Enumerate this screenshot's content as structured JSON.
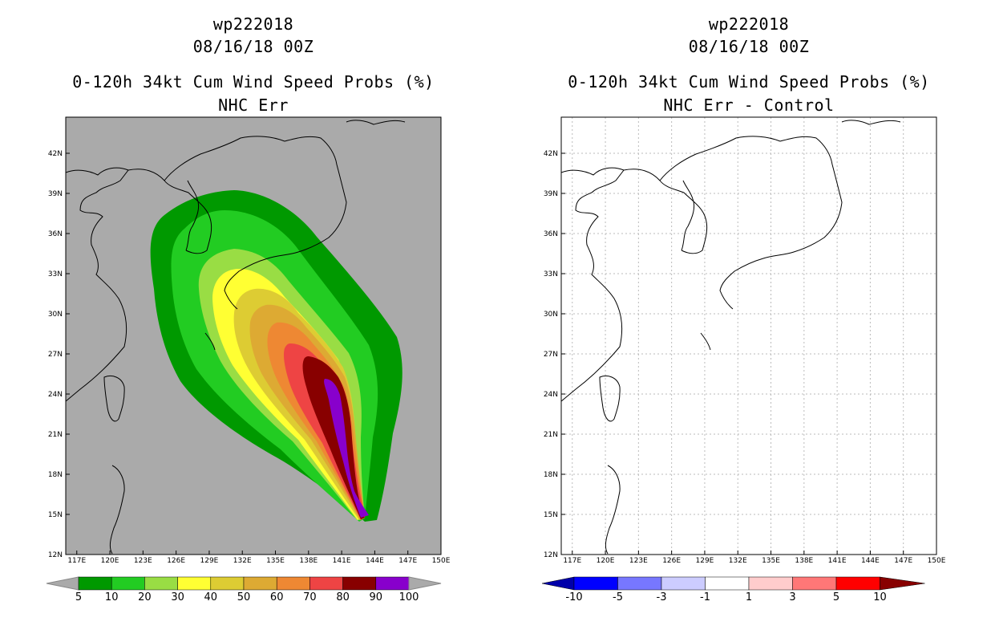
{
  "left": {
    "storm_id": "wp222018",
    "datetime": "08/16/18 00Z",
    "product": "0-120h 34kt Cum Wind Speed Probs (%)",
    "subtitle": "NHC Err",
    "lon_labels": [
      "117E",
      "120E",
      "123E",
      "126E",
      "129E",
      "132E",
      "135E",
      "138E",
      "141E",
      "144E",
      "147E",
      "150E"
    ],
    "lat_labels": [
      "42N",
      "39N",
      "36N",
      "33N",
      "30N",
      "27N",
      "24N",
      "21N",
      "18N",
      "15N",
      "12N"
    ],
    "colorbar": {
      "labels": [
        "5",
        "10",
        "20",
        "30",
        "40",
        "50",
        "60",
        "70",
        "80",
        "90",
        "100"
      ],
      "colors": [
        "#009900",
        "#22cc22",
        "#99dd44",
        "#ffff33",
        "#ddcc33",
        "#ddaa33",
        "#ee8833",
        "#ee4444",
        "#880000",
        "#8800cc"
      ],
      "background": "#aaaaaa"
    }
  },
  "right": {
    "storm_id": "wp222018",
    "datetime": "08/16/18 00Z",
    "product": "0-120h 34kt Cum Wind Speed Probs (%)",
    "subtitle": "NHC Err - Control",
    "lon_labels": [
      "117E",
      "120E",
      "123E",
      "126E",
      "129E",
      "132E",
      "135E",
      "138E",
      "141E",
      "144E",
      "147E",
      "150E"
    ],
    "lat_labels": [
      "42N",
      "39N",
      "36N",
      "33N",
      "30N",
      "27N",
      "24N",
      "21N",
      "18N",
      "15N",
      "12N"
    ],
    "colorbar": {
      "labels": [
        "-10",
        "-5",
        "-3",
        "-1",
        "1",
        "3",
        "5",
        "10"
      ],
      "colors": [
        "#0000aa",
        "#0000ff",
        "#7777ff",
        "#ccccff",
        "#ffffff",
        "#ffcccc",
        "#ff7777",
        "#ff0000",
        "#880000"
      ]
    }
  }
}
